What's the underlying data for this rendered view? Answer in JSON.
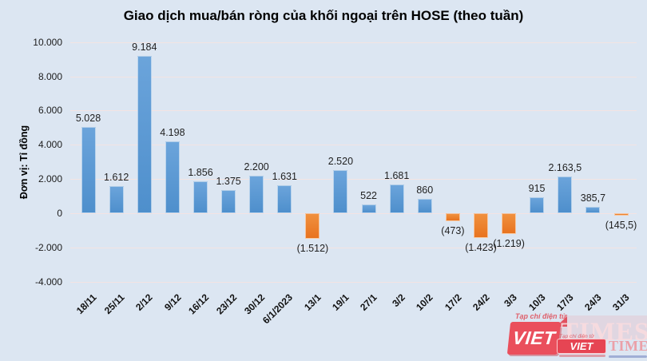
{
  "title": "Giao dịch mua/bán ròng của khối ngoại trên HOSE (theo tuần)",
  "chart_data": {
    "type": "bar",
    "title": "Giao dịch mua/bán ròng của khối ngoại trên HOSE (theo tuần)",
    "ylabel": "Đơn vị: Tỉ đồng",
    "xlabel": "",
    "ylim": [
      -4000,
      10000
    ],
    "grid": true,
    "legend": false,
    "categories": [
      "18/11",
      "25/11",
      "2/12",
      "9/12",
      "16/12",
      "23/12",
      "30/12",
      "6/1/2023",
      "13/1",
      "19/1",
      "27/1",
      "3/2",
      "10/2",
      "17/2",
      "24/2",
      "3/3",
      "10/3",
      "17/3",
      "24/3",
      "31/3"
    ],
    "values": [
      5028,
      1612,
      9184,
      4198,
      1856,
      1375,
      2200,
      1631,
      -1512,
      2520,
      522,
      1681,
      860,
      -473,
      -1423,
      -1219,
      915,
      2163.5,
      385.7,
      -145.5
    ],
    "data_labels": [
      "5.028",
      "1.612",
      "9.184",
      "4.198",
      "1.856",
      "1.375",
      "2.200",
      "1.631",
      "(1.512)",
      "2.520",
      "522",
      "1.681",
      "860",
      "(473)",
      "(1.423)",
      "(1.219)",
      "915",
      "2.163,5",
      "385,7",
      "(145,5)"
    ],
    "y_ticks": [
      {
        "value": 10000,
        "label": "10.000"
      },
      {
        "value": 8000,
        "label": "8.000"
      },
      {
        "value": 6000,
        "label": "6.000"
      },
      {
        "value": 4000,
        "label": "4.000"
      },
      {
        "value": 2000,
        "label": "2.000"
      },
      {
        "value": 0,
        "label": "0"
      },
      {
        "value": -2000,
        "label": "-2.000"
      },
      {
        "value": -4000,
        "label": "-4.000"
      }
    ],
    "colors": {
      "positive": "#5B9BD5",
      "negative": "#ED7D31",
      "background": "#DCE6F2",
      "gridline": "#F3E4E2"
    }
  },
  "watermark": {
    "tagline": "Tạp chí điện tử",
    "brand_primary": "VIET",
    "brand_secondary": "TIMES",
    "brand_color": "#E84653"
  }
}
